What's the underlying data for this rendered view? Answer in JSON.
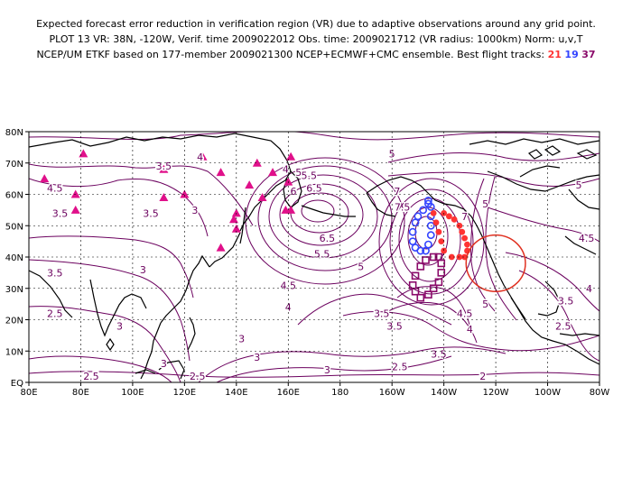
{
  "title": {
    "line1": "Expected forecast error reduction in verification region (VR) due to adaptive observations around any grid point.",
    "line2": "PLOT 13 VR: 38N, -120W, Verif. time 2009022012 Obs. time: 2009021712 (VR radius: 1000km) Norm: u,v,T",
    "line3_prefix": "NCEP/UM ETKF based on 177-member 2009021300 NCEP+ECMWF+CMC ensemble. Best flight tracks:",
    "tracks": [
      {
        "label": "21",
        "color": "#ff3333"
      },
      {
        "label": "19",
        "color": "#3344ff"
      },
      {
        "label": "37",
        "color": "#8b0a6a"
      }
    ]
  },
  "map": {
    "lon_ticks": [
      "80E",
      "80E",
      "100E",
      "120E",
      "140E",
      "160E",
      "180",
      "160W",
      "140W",
      "120W",
      "100W",
      "80W"
    ],
    "lat_ticks": [
      "EQ",
      "10N",
      "20N",
      "30N",
      "40N",
      "50N",
      "60N",
      "70N",
      "80N"
    ],
    "contour_color": "#6b005e",
    "contour_labels": [
      {
        "text": "5",
        "lon": 200,
        "lat": 73
      },
      {
        "text": "4.5",
        "lon": 70,
        "lat": 62
      },
      {
        "text": "3.5",
        "lon": 112,
        "lat": 69
      },
      {
        "text": "4",
        "lon": 126,
        "lat": 72
      },
      {
        "text": "3.5",
        "lon": 72,
        "lat": 54
      },
      {
        "text": "3.5",
        "lon": 107,
        "lat": 54
      },
      {
        "text": "3",
        "lon": 124,
        "lat": 55
      },
      {
        "text": "4",
        "lon": 159,
        "lat": 68
      },
      {
        "text": "5",
        "lon": 164,
        "lat": 67
      },
      {
        "text": "5.5",
        "lon": 168,
        "lat": 66
      },
      {
        "text": "6",
        "lon": 162,
        "lat": 61
      },
      {
        "text": "6.5",
        "lon": 170,
        "lat": 62
      },
      {
        "text": "7",
        "lon": 202,
        "lat": 61
      },
      {
        "text": "7.5",
        "lon": 204,
        "lat": 56
      },
      {
        "text": "7",
        "lon": 228,
        "lat": 53
      },
      {
        "text": "6.5",
        "lon": 175,
        "lat": 46
      },
      {
        "text": "5.5",
        "lon": 173,
        "lat": 41
      },
      {
        "text": "5",
        "lon": 188,
        "lat": 37
      },
      {
        "text": "4.5",
        "lon": 160,
        "lat": 31
      },
      {
        "text": "4",
        "lon": 160,
        "lat": 24
      },
      {
        "text": "3.5",
        "lon": 70,
        "lat": 35
      },
      {
        "text": "3",
        "lon": 104,
        "lat": 36
      },
      {
        "text": "2.5",
        "lon": 70,
        "lat": 22
      },
      {
        "text": "3",
        "lon": 95,
        "lat": 18
      },
      {
        "text": "3",
        "lon": 142,
        "lat": 14
      },
      {
        "text": "3",
        "lon": 148,
        "lat": 8
      },
      {
        "text": "2.5",
        "lon": 84,
        "lat": 2
      },
      {
        "text": "2.5",
        "lon": 125,
        "lat": 2
      },
      {
        "text": "3",
        "lon": 112,
        "lat": 6
      },
      {
        "text": "3.5",
        "lon": 196,
        "lat": 22
      },
      {
        "text": "3.5",
        "lon": 201,
        "lat": 18
      },
      {
        "text": "3",
        "lon": 175,
        "lat": 4
      },
      {
        "text": "2.5",
        "lon": 203,
        "lat": 5
      },
      {
        "text": "3.5",
        "lon": 218,
        "lat": 9
      },
      {
        "text": "2",
        "lon": 235,
        "lat": 2
      },
      {
        "text": "4",
        "lon": 230,
        "lat": 17
      },
      {
        "text": "4.5",
        "lon": 228,
        "lat": 22
      },
      {
        "text": "5",
        "lon": 236,
        "lat": 25
      },
      {
        "text": "4.5",
        "lon": 275,
        "lat": 46
      },
      {
        "text": "4",
        "lon": 276,
        "lat": 30
      },
      {
        "text": "3.5",
        "lon": 267,
        "lat": 26
      },
      {
        "text": "2.5",
        "lon": 266,
        "lat": 18
      },
      {
        "text": "5",
        "lon": 272,
        "lat": 63
      },
      {
        "text": "5",
        "lon": 236,
        "lat": 57
      }
    ],
    "stations": [
      {
        "lon": 66,
        "lat": 65
      },
      {
        "lon": 81,
        "lat": 73
      },
      {
        "lon": 78,
        "lat": 60
      },
      {
        "lon": 78,
        "lat": 55
      },
      {
        "lon": 112,
        "lat": 68
      },
      {
        "lon": 112,
        "lat": 59
      },
      {
        "lon": 120,
        "lat": 60
      },
      {
        "lon": 127,
        "lat": 72
      },
      {
        "lon": 134,
        "lat": 67
      },
      {
        "lon": 139,
        "lat": 52
      },
      {
        "lon": 145,
        "lat": 63
      },
      {
        "lon": 148,
        "lat": 70
      },
      {
        "lon": 150,
        "lat": 59
      },
      {
        "lon": 154,
        "lat": 67
      },
      {
        "lon": 160,
        "lat": 64
      },
      {
        "lon": 161,
        "lat": 72
      },
      {
        "lon": 159,
        "lat": 55
      },
      {
        "lon": 161,
        "lat": 55
      },
      {
        "lon": 140,
        "lat": 54
      },
      {
        "lon": 140,
        "lat": 49
      },
      {
        "lon": 134,
        "lat": 43
      }
    ],
    "track_21": [
      {
        "lon": 220,
        "lat": 54
      },
      {
        "lon": 222,
        "lat": 53
      },
      {
        "lon": 224,
        "lat": 52
      },
      {
        "lon": 226,
        "lat": 50
      },
      {
        "lon": 227,
        "lat": 48
      },
      {
        "lon": 228,
        "lat": 46
      },
      {
        "lon": 229,
        "lat": 44
      },
      {
        "lon": 229,
        "lat": 42
      },
      {
        "lon": 228,
        "lat": 40
      },
      {
        "lon": 226,
        "lat": 40
      },
      {
        "lon": 223,
        "lat": 40
      },
      {
        "lon": 220,
        "lat": 42
      },
      {
        "lon": 219,
        "lat": 45
      },
      {
        "lon": 218,
        "lat": 48
      },
      {
        "lon": 217,
        "lat": 51
      },
      {
        "lon": 216,
        "lat": 54
      }
    ],
    "track_19": [
      {
        "lon": 214,
        "lat": 57
      },
      {
        "lon": 212,
        "lat": 55
      },
      {
        "lon": 210,
        "lat": 53
      },
      {
        "lon": 209,
        "lat": 51
      },
      {
        "lon": 208,
        "lat": 48
      },
      {
        "lon": 208,
        "lat": 45
      },
      {
        "lon": 209,
        "lat": 43
      },
      {
        "lon": 211,
        "lat": 42
      },
      {
        "lon": 213,
        "lat": 42
      },
      {
        "lon": 214,
        "lat": 44
      },
      {
        "lon": 215,
        "lat": 47
      },
      {
        "lon": 215,
        "lat": 50
      },
      {
        "lon": 215,
        "lat": 53
      },
      {
        "lon": 215,
        "lat": 56
      },
      {
        "lon": 214,
        "lat": 58
      }
    ],
    "track_37": [
      {
        "lon": 216,
        "lat": 40
      },
      {
        "lon": 213,
        "lat": 39
      },
      {
        "lon": 211,
        "lat": 37
      },
      {
        "lon": 209,
        "lat": 34
      },
      {
        "lon": 208,
        "lat": 31
      },
      {
        "lon": 209,
        "lat": 29
      },
      {
        "lon": 211,
        "lat": 27
      },
      {
        "lon": 214,
        "lat": 28
      },
      {
        "lon": 216,
        "lat": 30
      },
      {
        "lon": 218,
        "lat": 32
      },
      {
        "lon": 219,
        "lat": 35
      },
      {
        "lon": 219,
        "lat": 38
      },
      {
        "lon": 218,
        "lat": 40
      }
    ],
    "verification_region": {
      "lat": 38,
      "lon": 240,
      "radius_km": 1000,
      "color": "#e03020"
    },
    "station_color": "#e0108a",
    "land_color": "#000000"
  }
}
